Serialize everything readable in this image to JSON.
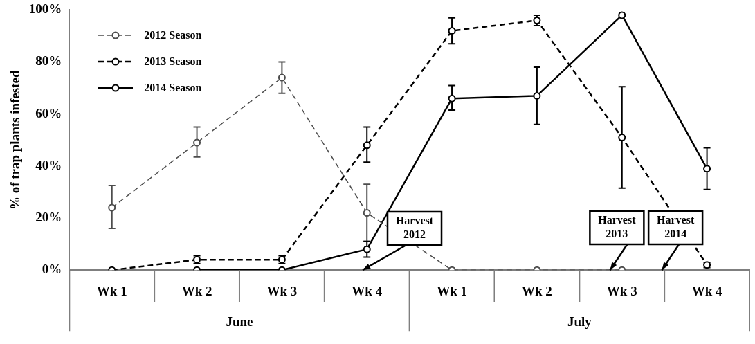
{
  "chart_data": {
    "type": "line",
    "ylabel": "% of trap plants infested",
    "categories": [
      "Wk 1",
      "Wk 2",
      "Wk 3",
      "Wk 4",
      "Wk 1",
      "Wk 2",
      "Wk 3",
      "Wk 4"
    ],
    "series": [
      {
        "name": "2012 Season",
        "color": "#4d4d4d",
        "line_style": "dashed",
        "values": [
          24,
          49,
          74,
          22,
          0,
          0,
          0,
          null
        ],
        "errors": [
          [
            16,
            32.5
          ],
          [
            43.5,
            55
          ],
          [
            68,
            80
          ],
          [
            11,
            33
          ],
          null,
          null,
          null,
          null
        ]
      },
      {
        "name": "2013 Season",
        "color": "#000000",
        "line_style": "dashed",
        "values": [
          0,
          4,
          4,
          48,
          92,
          96,
          51,
          2
        ],
        "errors": [
          null,
          [
            2.5,
            5.5
          ],
          [
            2.5,
            5.5
          ],
          [
            41.5,
            55
          ],
          [
            87,
            97
          ],
          [
            94,
            98
          ],
          [
            31.5,
            70.5
          ],
          [
            1,
            3
          ]
        ]
      },
      {
        "name": "2014 Season",
        "color": "#000000",
        "line_style": "solid",
        "values": [
          null,
          0,
          0,
          8,
          66,
          67,
          98,
          39
        ],
        "errors": [
          null,
          null,
          null,
          [
            5,
            11
          ],
          [
            61.5,
            71
          ],
          [
            56,
            78
          ],
          null,
          [
            31,
            47
          ]
        ]
      }
    ],
    "ylim": [
      0,
      100
    ],
    "yticks": [
      {
        "value": 0,
        "label": "0%"
      },
      {
        "value": 20,
        "label": "20%"
      },
      {
        "value": 40,
        "label": "40%"
      },
      {
        "value": 60,
        "label": "60%"
      },
      {
        "value": 80,
        "label": "80%"
      },
      {
        "value": 100,
        "label": "100%"
      }
    ],
    "annotations": [
      "June",
      "July",
      "Harvest 2012",
      {
        "text": "Harvest 2013",
        "y": 0
      },
      "Harvest 2014"
    ],
    "legend": "top left",
    "marker": "circle",
    "grid": false
  }
}
